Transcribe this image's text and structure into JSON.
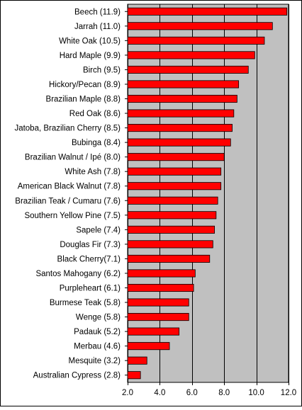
{
  "chart_data": {
    "type": "bar",
    "orientation": "horizontal",
    "categories": [
      "Beech (11.9)",
      "Jarrah (11.0)",
      "White Oak (10.5)",
      "Hard Maple (9.9)",
      "Birch (9.5)",
      "Hickory/Pecan (8.9)",
      "Brazilian Maple (8.8)",
      "Red Oak (8.6)",
      "Jatoba, Brazilian Cherry (8.5)",
      "Bubinga (8.4)",
      "Brazilian Walnut / Ipé (8.0)",
      "White Ash (7.8)",
      "American Black Walnut (7.8)",
      "Brazilian Teak / Cumaru (7.6)",
      "Southern Yellow Pine (7.5)",
      "Sapele (7.4)",
      "Douglas Fir (7.3)",
      "Black Cherry(7.1)",
      "Santos Mahogany (6.2)",
      "Purpleheart (6.1)",
      "Burmese Teak (5.8)",
      "Wenge (5.8)",
      "Padauk (5.2)",
      "Merbau (4.6)",
      "Mesquite (3.2)",
      "Australian Cypress (2.8)"
    ],
    "values": [
      11.9,
      11.0,
      10.5,
      9.9,
      9.5,
      8.9,
      8.8,
      8.6,
      8.5,
      8.4,
      8.0,
      7.8,
      7.8,
      7.6,
      7.5,
      7.4,
      7.3,
      7.1,
      6.2,
      6.1,
      5.8,
      5.8,
      5.2,
      4.6,
      3.2,
      2.8
    ],
    "xlim": [
      2.0,
      12.0
    ],
    "xticks": [
      "2.0",
      "4.0",
      "6.0",
      "8.0",
      "10.0",
      "12.0"
    ],
    "grid": "vertical",
    "title": "",
    "xlabel": "",
    "ylabel": "",
    "colors": {
      "bar": "#ff0000",
      "bar_edge": "#000000",
      "plot_background": "#c0c0c0",
      "gridline": "#000000"
    }
  }
}
